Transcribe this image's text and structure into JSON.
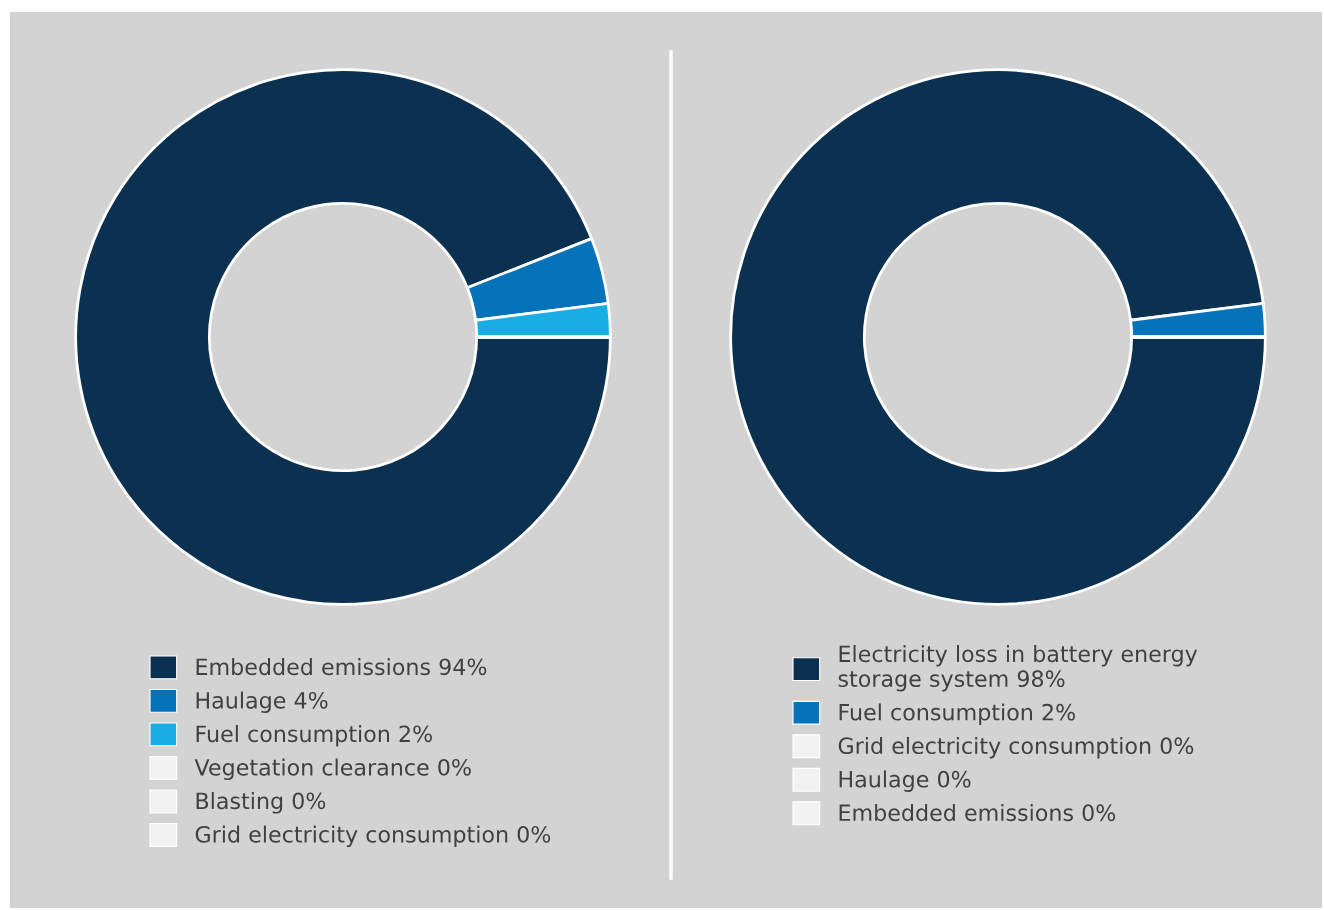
{
  "chart_data": [
    {
      "type": "donut",
      "categories": [
        "Embedded emissions 94%",
        "Haulage 4%",
        "Fuel consumption 2%",
        "Vegetation clearance 0%",
        "Blasting 0%",
        "Grid electricity consumption 0%"
      ],
      "values": [
        94,
        4,
        2,
        0,
        0,
        0
      ],
      "colors": [
        "#0b3050",
        "#0572b9",
        "#1aade4",
        "#f2f2f2",
        "#f2f2f2",
        "#f2f2f2"
      ],
      "legend": "bottom"
    },
    {
      "type": "donut",
      "categories": [
        "Electricity loss in battery energy\nstorage system 98%",
        "Fuel consumption 2%",
        "Grid electricity consumption 0%",
        "Haulage 0%",
        "Embedded emissions 0%"
      ],
      "values": [
        98,
        2,
        0,
        0,
        0
      ],
      "colors": [
        "#0b3050",
        "#0572b9",
        "#f2f2f2",
        "#f2f2f2",
        "#f2f2f2"
      ],
      "legend": "bottom"
    }
  ]
}
